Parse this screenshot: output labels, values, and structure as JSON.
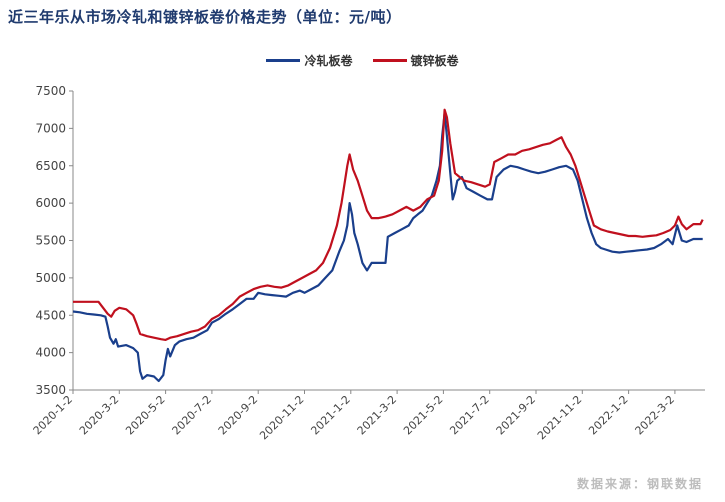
{
  "header": {
    "title": "近三年乐从市场冷轧和镀锌板卷价格走势（单位：元/吨）"
  },
  "footer": {
    "source": "数据来源：钢联数据"
  },
  "colors": {
    "cold_rolled": "#1a3f8c",
    "galvanized": "#c0101e",
    "axis": "#888888"
  },
  "chart_data": {
    "type": "line",
    "title": "近三年乐从市场冷轧和镀锌板卷价格走势（单位：元/吨）",
    "xlabel": "",
    "ylabel": "",
    "ylim": [
      3500,
      7500
    ],
    "yticks": [
      3500,
      4000,
      4500,
      5000,
      5500,
      6000,
      6500,
      7000,
      7500
    ],
    "categories": [
      "2020-1-2",
      "2020-3-2",
      "2020-5-2",
      "2020-7-2",
      "2020-9-2",
      "2020-11-2",
      "2021-1-2",
      "2021-3-2",
      "2021-5-2",
      "2021-7-2",
      "2021-9-2",
      "2021-11-2",
      "2022-1-2",
      "2022-3-2"
    ],
    "x_tick_index": [
      0,
      2,
      4,
      6,
      8,
      10,
      12,
      14,
      16,
      18,
      20,
      22,
      24,
      26
    ],
    "x_index_max": 27.3,
    "legend": [
      "冷轧板卷",
      "镀锌板卷"
    ],
    "series": [
      {
        "name": "冷轧板卷",
        "points": [
          [
            0,
            4550
          ],
          [
            0.3,
            4540
          ],
          [
            0.6,
            4520
          ],
          [
            0.9,
            4510
          ],
          [
            1.2,
            4500
          ],
          [
            1.4,
            4480
          ],
          [
            1.5,
            4350
          ],
          [
            1.6,
            4200
          ],
          [
            1.75,
            4120
          ],
          [
            1.85,
            4180
          ],
          [
            1.95,
            4080
          ],
          [
            2.3,
            4100
          ],
          [
            2.6,
            4060
          ],
          [
            2.8,
            4000
          ],
          [
            2.9,
            3750
          ],
          [
            3.0,
            3650
          ],
          [
            3.2,
            3700
          ],
          [
            3.5,
            3680
          ],
          [
            3.7,
            3620
          ],
          [
            3.9,
            3700
          ],
          [
            4.0,
            3900
          ],
          [
            4.1,
            4050
          ],
          [
            4.2,
            3950
          ],
          [
            4.4,
            4100
          ],
          [
            4.6,
            4150
          ],
          [
            4.9,
            4180
          ],
          [
            5.2,
            4200
          ],
          [
            5.5,
            4250
          ],
          [
            5.8,
            4300
          ],
          [
            6.0,
            4400
          ],
          [
            6.3,
            4450
          ],
          [
            6.6,
            4520
          ],
          [
            6.9,
            4580
          ],
          [
            7.2,
            4650
          ],
          [
            7.5,
            4720
          ],
          [
            7.8,
            4720
          ],
          [
            8.0,
            4800
          ],
          [
            8.3,
            4780
          ],
          [
            8.6,
            4770
          ],
          [
            8.9,
            4760
          ],
          [
            9.2,
            4750
          ],
          [
            9.5,
            4800
          ],
          [
            9.8,
            4830
          ],
          [
            10.0,
            4800
          ],
          [
            10.3,
            4850
          ],
          [
            10.6,
            4900
          ],
          [
            10.9,
            5000
          ],
          [
            11.2,
            5100
          ],
          [
            11.5,
            5350
          ],
          [
            11.7,
            5500
          ],
          [
            11.85,
            5700
          ],
          [
            11.95,
            6000
          ],
          [
            12.05,
            5850
          ],
          [
            12.15,
            5600
          ],
          [
            12.3,
            5450
          ],
          [
            12.5,
            5200
          ],
          [
            12.7,
            5100
          ],
          [
            12.9,
            5200
          ],
          [
            13.2,
            5200
          ],
          [
            13.5,
            5200
          ],
          [
            13.6,
            5550
          ],
          [
            13.9,
            5600
          ],
          [
            14.2,
            5650
          ],
          [
            14.5,
            5700
          ],
          [
            14.7,
            5800
          ],
          [
            14.9,
            5850
          ],
          [
            15.1,
            5900
          ],
          [
            15.3,
            6000
          ],
          [
            15.5,
            6100
          ],
          [
            15.7,
            6300
          ],
          [
            15.85,
            6500
          ],
          [
            15.95,
            6900
          ],
          [
            16.05,
            7200
          ],
          [
            16.15,
            6900
          ],
          [
            16.3,
            6400
          ],
          [
            16.4,
            6050
          ],
          [
            16.5,
            6150
          ],
          [
            16.6,
            6300
          ],
          [
            16.8,
            6350
          ],
          [
            17.0,
            6200
          ],
          [
            17.3,
            6150
          ],
          [
            17.6,
            6100
          ],
          [
            17.9,
            6050
          ],
          [
            18.1,
            6050
          ],
          [
            18.3,
            6350
          ],
          [
            18.6,
            6450
          ],
          [
            18.9,
            6500
          ],
          [
            19.2,
            6480
          ],
          [
            19.5,
            6450
          ],
          [
            19.8,
            6420
          ],
          [
            20.1,
            6400
          ],
          [
            20.4,
            6420
          ],
          [
            20.7,
            6450
          ],
          [
            21.0,
            6480
          ],
          [
            21.3,
            6500
          ],
          [
            21.6,
            6450
          ],
          [
            21.8,
            6300
          ],
          [
            22.0,
            6050
          ],
          [
            22.2,
            5800
          ],
          [
            22.4,
            5600
          ],
          [
            22.6,
            5450
          ],
          [
            22.8,
            5400
          ],
          [
            23.0,
            5380
          ],
          [
            23.3,
            5350
          ],
          [
            23.6,
            5340
          ],
          [
            23.9,
            5350
          ],
          [
            24.2,
            5360
          ],
          [
            24.5,
            5370
          ],
          [
            24.8,
            5380
          ],
          [
            25.1,
            5400
          ],
          [
            25.4,
            5450
          ],
          [
            25.7,
            5520
          ],
          [
            25.9,
            5450
          ],
          [
            26.1,
            5700
          ],
          [
            26.3,
            5500
          ],
          [
            26.5,
            5480
          ],
          [
            26.8,
            5520
          ],
          [
            27.2,
            5520
          ]
        ]
      },
      {
        "name": "镀锌板卷",
        "points": [
          [
            0,
            4680
          ],
          [
            0.4,
            4680
          ],
          [
            0.8,
            4680
          ],
          [
            1.1,
            4680
          ],
          [
            1.3,
            4600
          ],
          [
            1.5,
            4520
          ],
          [
            1.65,
            4480
          ],
          [
            1.8,
            4560
          ],
          [
            2.0,
            4600
          ],
          [
            2.3,
            4580
          ],
          [
            2.6,
            4500
          ],
          [
            2.75,
            4380
          ],
          [
            2.9,
            4250
          ],
          [
            3.2,
            4220
          ],
          [
            3.5,
            4200
          ],
          [
            3.8,
            4180
          ],
          [
            4.0,
            4170
          ],
          [
            4.2,
            4200
          ],
          [
            4.5,
            4220
          ],
          [
            4.8,
            4250
          ],
          [
            5.1,
            4280
          ],
          [
            5.4,
            4300
          ],
          [
            5.7,
            4350
          ],
          [
            6.0,
            4450
          ],
          [
            6.3,
            4500
          ],
          [
            6.6,
            4580
          ],
          [
            6.9,
            4650
          ],
          [
            7.2,
            4750
          ],
          [
            7.5,
            4800
          ],
          [
            7.8,
            4850
          ],
          [
            8.1,
            4880
          ],
          [
            8.4,
            4900
          ],
          [
            8.7,
            4880
          ],
          [
            9.0,
            4870
          ],
          [
            9.3,
            4900
          ],
          [
            9.6,
            4950
          ],
          [
            9.9,
            5000
          ],
          [
            10.2,
            5050
          ],
          [
            10.5,
            5100
          ],
          [
            10.8,
            5200
          ],
          [
            11.1,
            5400
          ],
          [
            11.4,
            5700
          ],
          [
            11.6,
            6000
          ],
          [
            11.75,
            6300
          ],
          [
            11.85,
            6500
          ],
          [
            11.95,
            6650
          ],
          [
            12.1,
            6450
          ],
          [
            12.3,
            6300
          ],
          [
            12.5,
            6100
          ],
          [
            12.7,
            5900
          ],
          [
            12.9,
            5800
          ],
          [
            13.2,
            5800
          ],
          [
            13.5,
            5820
          ],
          [
            13.8,
            5850
          ],
          [
            14.1,
            5900
          ],
          [
            14.4,
            5950
          ],
          [
            14.7,
            5900
          ],
          [
            15.0,
            5950
          ],
          [
            15.3,
            6050
          ],
          [
            15.6,
            6100
          ],
          [
            15.8,
            6300
          ],
          [
            15.95,
            6700
          ],
          [
            16.05,
            7250
          ],
          [
            16.15,
            7150
          ],
          [
            16.3,
            6800
          ],
          [
            16.5,
            6400
          ],
          [
            16.7,
            6350
          ],
          [
            16.9,
            6300
          ],
          [
            17.2,
            6280
          ],
          [
            17.5,
            6250
          ],
          [
            17.8,
            6220
          ],
          [
            18.0,
            6250
          ],
          [
            18.2,
            6550
          ],
          [
            18.5,
            6600
          ],
          [
            18.8,
            6650
          ],
          [
            19.1,
            6650
          ],
          [
            19.4,
            6700
          ],
          [
            19.7,
            6720
          ],
          [
            20.0,
            6750
          ],
          [
            20.3,
            6780
          ],
          [
            20.6,
            6800
          ],
          [
            20.9,
            6850
          ],
          [
            21.1,
            6880
          ],
          [
            21.3,
            6750
          ],
          [
            21.5,
            6650
          ],
          [
            21.7,
            6500
          ],
          [
            21.9,
            6300
          ],
          [
            22.1,
            6100
          ],
          [
            22.3,
            5900
          ],
          [
            22.5,
            5700
          ],
          [
            22.8,
            5650
          ],
          [
            23.1,
            5620
          ],
          [
            23.4,
            5600
          ],
          [
            23.7,
            5580
          ],
          [
            24.0,
            5560
          ],
          [
            24.3,
            5560
          ],
          [
            24.6,
            5550
          ],
          [
            24.9,
            5560
          ],
          [
            25.2,
            5570
          ],
          [
            25.5,
            5600
          ],
          [
            25.8,
            5640
          ],
          [
            26.0,
            5700
          ],
          [
            26.15,
            5820
          ],
          [
            26.3,
            5720
          ],
          [
            26.5,
            5650
          ],
          [
            26.8,
            5720
          ],
          [
            27.1,
            5720
          ],
          [
            27.2,
            5780
          ]
        ]
      }
    ]
  }
}
